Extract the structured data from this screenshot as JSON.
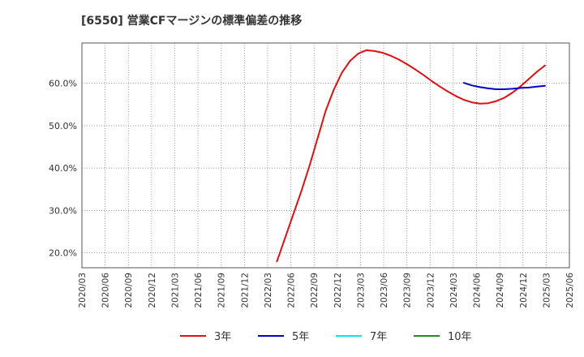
{
  "chart_data": {
    "type": "line",
    "title": "[6550]  営業CFマージンの標準偏差の推移",
    "xlabel": "",
    "ylabel": "",
    "ylim": [
      16.5,
      69.5
    ],
    "y_ticks": [
      20,
      30,
      40,
      50,
      60
    ],
    "y_tick_labels": [
      "20.0%",
      "30.0%",
      "40.0%",
      "50.0%",
      "60.0%"
    ],
    "x_range": [
      0,
      60
    ],
    "x_ticks": [
      "2020/03",
      "2020/06",
      "2020/09",
      "2020/12",
      "2021/03",
      "2021/06",
      "2021/09",
      "2021/12",
      "2022/03",
      "2022/06",
      "2022/09",
      "2022/12",
      "2023/03",
      "2023/06",
      "2023/09",
      "2023/12",
      "2024/03",
      "2024/06",
      "2024/09",
      "2024/12",
      "2025/03",
      "2025/06"
    ],
    "grid": true,
    "legend_position": "bottom",
    "series": [
      {
        "name": "3年",
        "color": "#dd1111",
        "points": [
          [
            24,
            18.0
          ],
          [
            25,
            23.5
          ],
          [
            26,
            29.0
          ],
          [
            27,
            34.5
          ],
          [
            28,
            40.5
          ],
          [
            29,
            47.0
          ],
          [
            30,
            53.5
          ],
          [
            31,
            58.5
          ],
          [
            32,
            62.5
          ],
          [
            33,
            65.3
          ],
          [
            34,
            67.0
          ],
          [
            35,
            67.8
          ],
          [
            36,
            67.6
          ],
          [
            37,
            67.2
          ],
          [
            38,
            66.5
          ],
          [
            39,
            65.6
          ],
          [
            40,
            64.5
          ],
          [
            41,
            63.3
          ],
          [
            42,
            62.0
          ],
          [
            43,
            60.6
          ],
          [
            44,
            59.3
          ],
          [
            45,
            58.1
          ],
          [
            46,
            57.0
          ],
          [
            47,
            56.1
          ],
          [
            48,
            55.5
          ],
          [
            49,
            55.2
          ],
          [
            50,
            55.3
          ],
          [
            51,
            55.8
          ],
          [
            52,
            56.6
          ],
          [
            53,
            57.8
          ],
          [
            54,
            59.3
          ],
          [
            55,
            61.0
          ],
          [
            56,
            62.7
          ],
          [
            57,
            64.2
          ]
        ]
      },
      {
        "name": "5年",
        "color": "#0000cc",
        "points": [
          [
            47,
            60.1
          ],
          [
            48,
            59.5
          ],
          [
            49,
            59.1
          ],
          [
            50,
            58.8
          ],
          [
            51,
            58.6
          ],
          [
            52,
            58.6
          ],
          [
            53,
            58.7
          ],
          [
            54,
            58.9
          ],
          [
            55,
            59.0
          ],
          [
            56,
            59.2
          ],
          [
            57,
            59.4
          ]
        ]
      },
      {
        "name": "7年",
        "color": "#00e5ee",
        "points": []
      },
      {
        "name": "10年",
        "color": "#228b22",
        "points": []
      }
    ]
  }
}
